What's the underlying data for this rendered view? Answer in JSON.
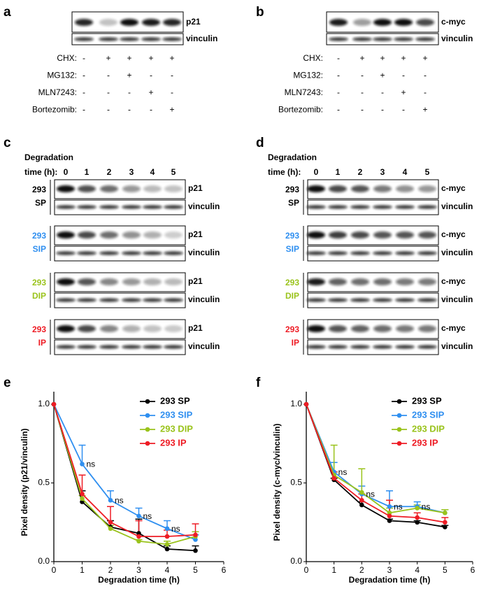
{
  "blots": [
    {
      "panel": "a",
      "targets": [
        "p21",
        "vinculin"
      ],
      "conditions": [
        {
          "name": "CHX:",
          "marks": [
            "-",
            "+",
            "+",
            "+",
            "+"
          ]
        },
        {
          "name": "MG132:",
          "marks": [
            "-",
            "-",
            "+",
            "-",
            "-"
          ]
        },
        {
          "name": "MLN7243:",
          "marks": [
            "-",
            "-",
            "-",
            "+",
            "-"
          ]
        },
        {
          "name": "Bortezomib:",
          "marks": [
            "-",
            "-",
            "-",
            "-",
            "+"
          ]
        }
      ]
    },
    {
      "panel": "b",
      "targets": [
        "c-myc",
        "vinculin"
      ],
      "conditions": [
        {
          "name": "CHX:",
          "marks": [
            "-",
            "+",
            "+",
            "+",
            "+"
          ]
        },
        {
          "name": "MG132:",
          "marks": [
            "-",
            "-",
            "+",
            "-",
            "-"
          ]
        },
        {
          "name": "MLN7243:",
          "marks": [
            "-",
            "-",
            "-",
            "+",
            "-"
          ]
        },
        {
          "name": "Bortezomib:",
          "marks": [
            "-",
            "-",
            "-",
            "-",
            "+"
          ]
        }
      ]
    }
  ],
  "time_blots": [
    {
      "panel": "c",
      "header": "Degradation",
      "time_label": "time (h):",
      "times": [
        0,
        1,
        2,
        3,
        4,
        5
      ],
      "rows": [
        {
          "line": "293",
          "kind": "SP",
          "color": "#000000",
          "targets": [
            "p21",
            "vinculin"
          ]
        },
        {
          "line": "293",
          "kind": "SIP",
          "color": "#2f8ff0",
          "targets": [
            "p21",
            "vinculin"
          ]
        },
        {
          "line": "293",
          "kind": "DIP",
          "color": "#9ac31c",
          "targets": [
            "p21",
            "vinculin"
          ]
        },
        {
          "line": "293",
          "kind": "IP",
          "color": "#ee1c25",
          "targets": [
            "p21",
            "vinculin"
          ]
        }
      ]
    },
    {
      "panel": "d",
      "header": "Degradation",
      "time_label": "time (h):",
      "times": [
        0,
        1,
        2,
        3,
        4,
        5
      ],
      "rows": [
        {
          "line": "293",
          "kind": "SP",
          "color": "#000000",
          "targets": [
            "c-myc",
            "vinculin"
          ]
        },
        {
          "line": "293",
          "kind": "SIP",
          "color": "#2f8ff0",
          "targets": [
            "c-myc",
            "vinculin"
          ]
        },
        {
          "line": "293",
          "kind": "DIP",
          "color": "#9ac31c",
          "targets": [
            "c-myc",
            "vinculin"
          ]
        },
        {
          "line": "293",
          "kind": "IP",
          "color": "#ee1c25",
          "targets": [
            "c-myc",
            "vinculin"
          ]
        }
      ]
    }
  ],
  "chart_data": [
    {
      "type": "line",
      "panel": "e",
      "x_label": "Degradation time (h)",
      "y_label": "Pixel density (p21/vinculin)",
      "x": [
        0,
        1,
        2,
        3,
        4,
        5
      ],
      "xlim": [
        0,
        6
      ],
      "xticks": [
        0,
        1,
        2,
        3,
        4,
        5,
        6
      ],
      "ylim": [
        0,
        1.08
      ],
      "yticks": [
        {
          "value": 0,
          "label": "0.0"
        },
        {
          "value": 0.5,
          "label": "0.5"
        },
        {
          "value": 1,
          "label": "1.0"
        }
      ],
      "legend": "upper right",
      "series": [
        {
          "name": "293 SP",
          "color": "#000000",
          "values": [
            1,
            0.38,
            0.22,
            0.18,
            0.08,
            0.07
          ],
          "errors": [
            0,
            0.07,
            0.04,
            0.09,
            0.02,
            0.03
          ]
        },
        {
          "name": "293 SIP",
          "color": "#2f8ff0",
          "values": [
            1,
            0.62,
            0.39,
            0.29,
            0.21,
            0.14
          ],
          "errors": [
            0,
            0.12,
            0.06,
            0.05,
            0.05,
            0.03
          ]
        },
        {
          "name": "293 DIP",
          "color": "#9ac31c",
          "values": [
            1,
            0.4,
            0.21,
            0.13,
            0.11,
            0.16
          ],
          "errors": [
            0,
            0.02,
            0.02,
            0.01,
            0.02,
            0.03
          ]
        },
        {
          "name": "293 IP",
          "color": "#ee1c25",
          "values": [
            1,
            0.43,
            0.25,
            0.16,
            0.16,
            0.17
          ],
          "errors": [
            0,
            0.12,
            0.1,
            0.1,
            0.04,
            0.07
          ]
        }
      ],
      "annotations": [
        "ns",
        "ns",
        "ns",
        "ns"
      ]
    },
    {
      "type": "line",
      "panel": "f",
      "x_label": "Degradation time (h)",
      "y_label": "Pixel density (c-myc/vinculin)",
      "x": [
        0,
        1,
        2,
        3,
        4,
        5
      ],
      "xlim": [
        0,
        6
      ],
      "xticks": [
        0,
        1,
        2,
        3,
        4,
        5,
        6
      ],
      "ylim": [
        0,
        1.08
      ],
      "yticks": [
        {
          "value": 0,
          "label": "0.0"
        },
        {
          "value": 0.5,
          "label": "0.5"
        },
        {
          "value": 1,
          "label": "1.0"
        }
      ],
      "legend": "upper right",
      "series": [
        {
          "name": "293 SP",
          "color": "#000000",
          "values": [
            1,
            0.52,
            0.36,
            0.26,
            0.25,
            0.22
          ],
          "errors": [
            0,
            0.01,
            0.02,
            0.01,
            0.01,
            0.01
          ]
        },
        {
          "name": "293 SIP",
          "color": "#2f8ff0",
          "values": [
            1,
            0.57,
            0.43,
            0.35,
            0.35,
            0.31
          ],
          "errors": [
            0,
            0.06,
            0.05,
            0.1,
            0.03,
            0.02
          ]
        },
        {
          "name": "293 DIP",
          "color": "#9ac31c",
          "values": [
            1,
            0.55,
            0.44,
            0.31,
            0.34,
            0.31
          ],
          "errors": [
            0,
            0.19,
            0.15,
            0.03,
            0.02,
            0.02
          ]
        },
        {
          "name": "293 IP",
          "color": "#ee1c25",
          "values": [
            1,
            0.53,
            0.39,
            0.29,
            0.28,
            0.25
          ],
          "errors": [
            0,
            0.04,
            0.04,
            0.1,
            0.03,
            0.03
          ]
        }
      ],
      "annotations": [
        "ns",
        "ns",
        "ns",
        "ns"
      ]
    }
  ]
}
